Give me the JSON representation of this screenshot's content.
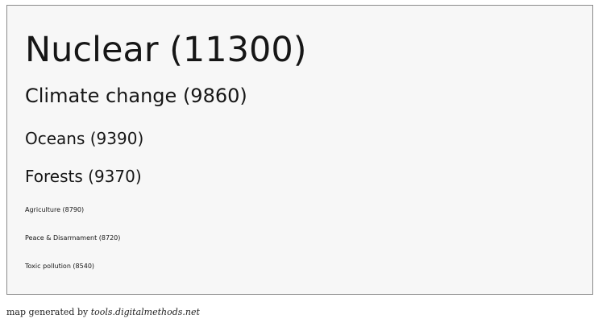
{
  "tags": [
    "Nuclear (11300)",
    "Climate change (9860)",
    "Oceans (9390)",
    "Forests (9370)",
    "Agriculture (8790)",
    "Peace & Disarmament (8720)",
    "Toxic pollution (8540)"
  ],
  "footer": {
    "text": "map generated by",
    "link": "tools.digitalmethods.net"
  }
}
